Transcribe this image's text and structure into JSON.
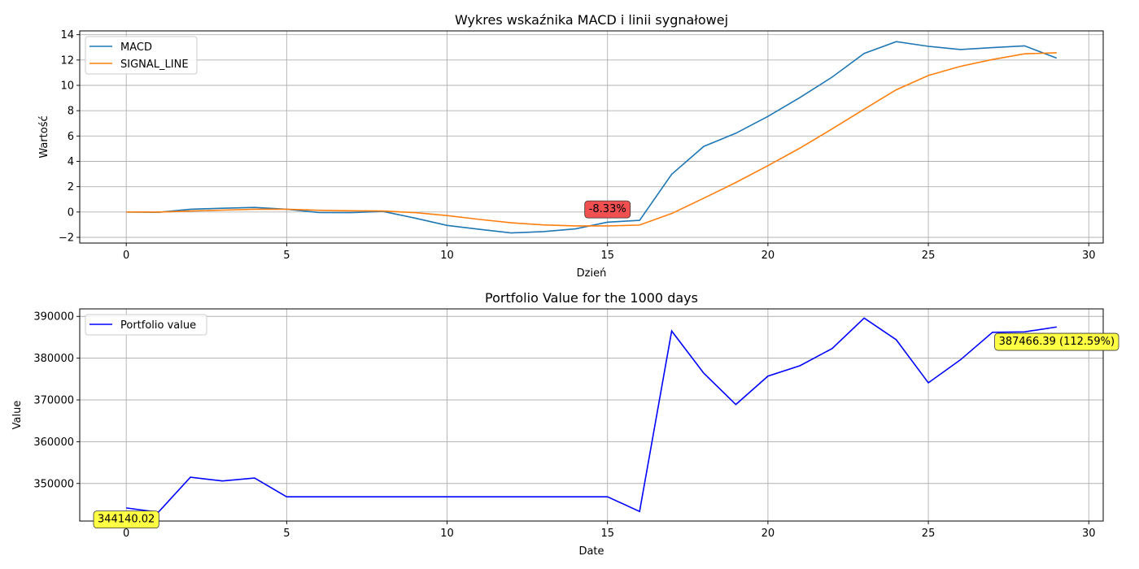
{
  "chart_data": [
    {
      "type": "line",
      "title": "Wykres wskaźnika MACD i linii sygnałowej",
      "xlabel": "Dzień",
      "ylabel": "Wartość",
      "xlim": [
        -1.45,
        30.45
      ],
      "ylim": [
        -2.45,
        14.3
      ],
      "xticks": [
        0,
        5,
        10,
        15,
        20,
        25,
        30
      ],
      "yticks": [
        -2,
        0,
        2,
        4,
        6,
        8,
        10,
        12,
        14
      ],
      "ytick_labels": [
        "−2",
        "0",
        "2",
        "4",
        "6",
        "8",
        "10",
        "12",
        "14"
      ],
      "grid": true,
      "legend_position": "upper left",
      "x": [
        0,
        1,
        2,
        3,
        4,
        5,
        6,
        7,
        8,
        9,
        10,
        11,
        12,
        13,
        14,
        15,
        16,
        17,
        18,
        19,
        20,
        21,
        22,
        23,
        24,
        25,
        26,
        27,
        28,
        29
      ],
      "series": [
        {
          "name": "MACD",
          "color": "#1f77b4",
          "values": [
            0.0,
            -0.02,
            0.22,
            0.3,
            0.36,
            0.22,
            -0.04,
            -0.05,
            0.05,
            -0.48,
            -1.06,
            -1.36,
            -1.65,
            -1.55,
            -1.33,
            -0.8,
            -0.66,
            2.98,
            5.18,
            6.22,
            7.55,
            9.04,
            10.65,
            12.52,
            13.45,
            13.08,
            12.83,
            12.98,
            13.12,
            12.15
          ]
        },
        {
          "name": "SIGNAL_LINE",
          "color": "#ff7f0e",
          "values": [
            0.0,
            -0.01,
            0.08,
            0.15,
            0.22,
            0.22,
            0.14,
            0.1,
            0.08,
            -0.05,
            -0.28,
            -0.58,
            -0.85,
            -1.02,
            -1.1,
            -1.1,
            -1.03,
            -0.12,
            1.09,
            2.33,
            3.66,
            5.05,
            6.56,
            8.12,
            9.65,
            10.78,
            11.5,
            12.04,
            12.49,
            12.57
          ]
        }
      ],
      "annotations": [
        {
          "text": "-8.33%",
          "x": 15,
          "y": 0.3,
          "bg": "#f05050"
        }
      ]
    },
    {
      "type": "line",
      "title": "Portfolio Value for the 1000 days",
      "xlabel": "Date",
      "ylabel": "Value",
      "xlim": [
        -1.45,
        30.45
      ],
      "ylim": [
        341000,
        391800
      ],
      "xticks": [
        0,
        5,
        10,
        15,
        20,
        25,
        30
      ],
      "yticks": [
        350000,
        360000,
        370000,
        380000,
        390000
      ],
      "ytick_labels": [
        "350000",
        "360000",
        "370000",
        "380000",
        "390000"
      ],
      "grid": true,
      "legend_position": "upper left",
      "x": [
        0,
        1,
        2,
        3,
        4,
        5,
        6,
        7,
        8,
        9,
        10,
        11,
        12,
        13,
        14,
        15,
        16,
        17,
        18,
        19,
        20,
        21,
        22,
        23,
        24,
        25,
        26,
        27,
        28,
        29
      ],
      "series": [
        {
          "name": "Portfolio value",
          "color": "#0000ff",
          "values": [
            344140.02,
            343100,
            351500,
            350600,
            351300,
            346800,
            346800,
            346800,
            346800,
            346800,
            346800,
            346800,
            346800,
            346800,
            346800,
            346800,
            343300,
            386500,
            376400,
            368900,
            375700,
            378200,
            382300,
            389600,
            384400,
            374100,
            379600,
            386200,
            386300,
            387466.39
          ]
        }
      ],
      "annotations": [
        {
          "text": "344140.02",
          "x": 0,
          "y": 341650,
          "bg": "#ffff44"
        },
        {
          "text": "387466.39 (112.59%)",
          "x": 29,
          "y": 384200,
          "bg": "#ffff44"
        }
      ]
    }
  ]
}
